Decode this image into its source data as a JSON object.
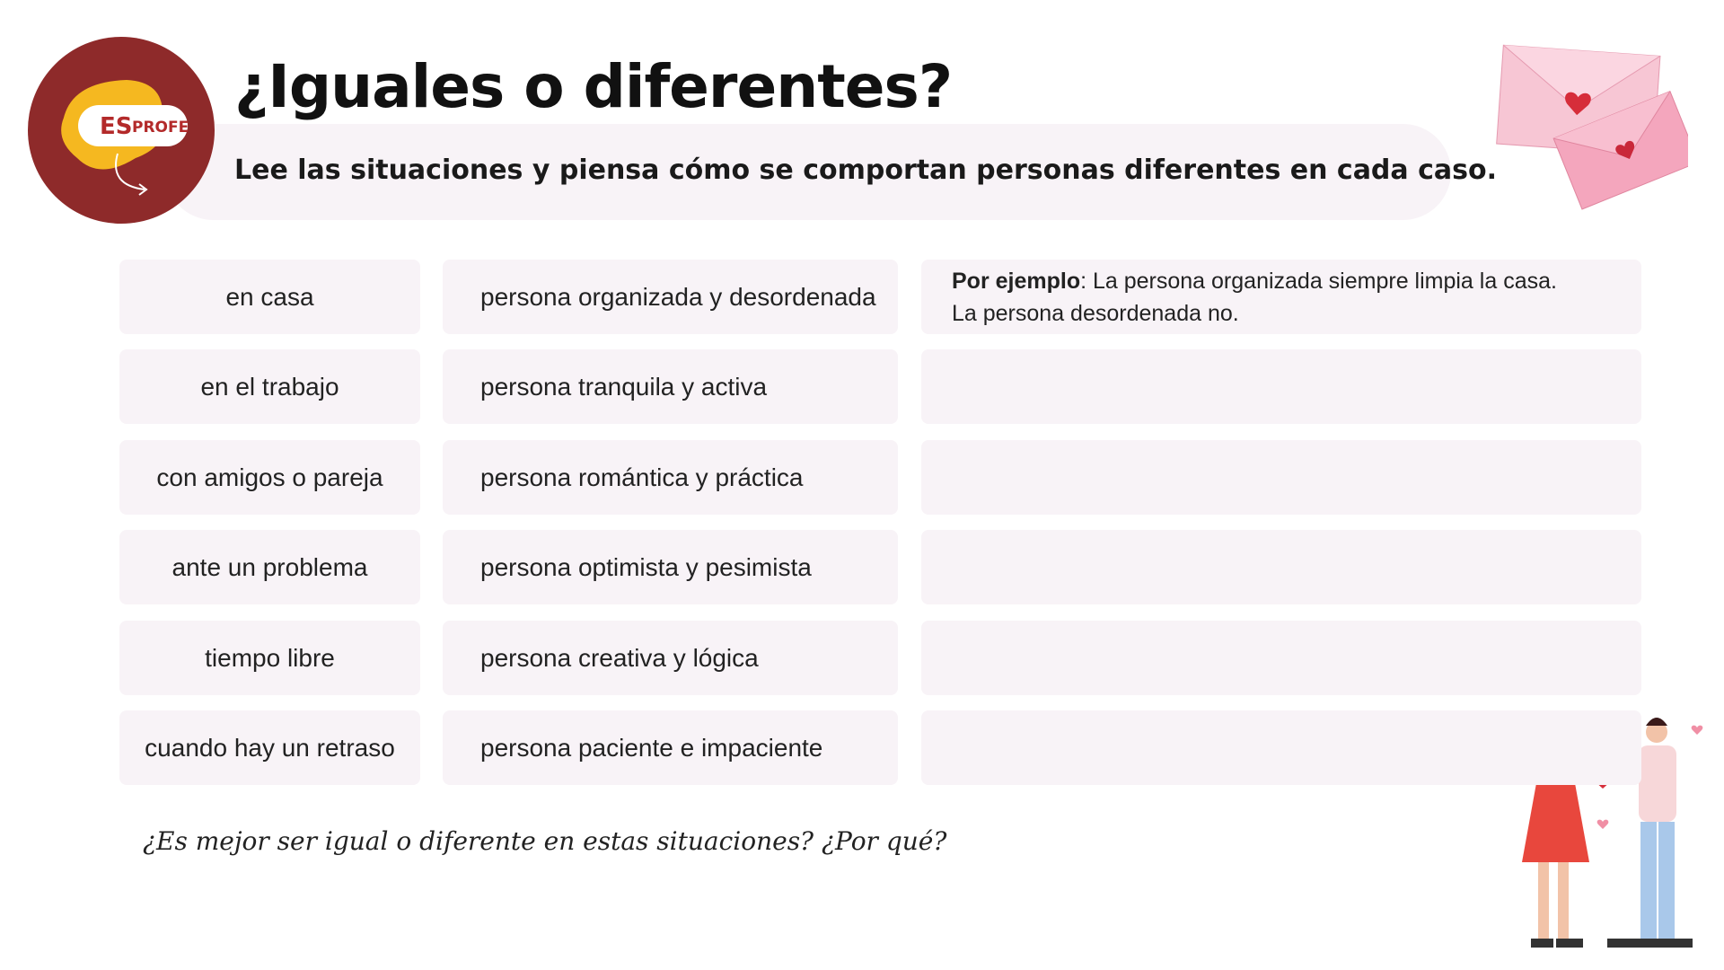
{
  "header": {
    "title": "¿Iguales o diferentes?",
    "subtitle": "Lee las situaciones y piensa cómo se comportan personas diferentes en cada caso.",
    "logo": {
      "es": "ES",
      "profe": "PROFE"
    }
  },
  "table": {
    "rows": [
      [
        "en casa",
        "persona organizada y  desordenada"
      ],
      [
        "en el trabajo",
        "persona tranquila y activa"
      ],
      [
        "con amigos o pareja",
        "persona romántica y  práctica"
      ],
      [
        "ante un problema",
        "persona optimista y pesimista"
      ],
      [
        "tiempo libre",
        "persona creativa y lógica"
      ],
      [
        "cuando hay un retraso",
        "persona paciente e impaciente"
      ]
    ],
    "example": {
      "label": "Por ejemplo",
      "text": ": La persona organizada siempre limpia la casa.",
      "line2": "La persona desordenada no."
    }
  },
  "question": "¿Es mejor ser igual o diferente en estas situaciones? ¿Por qué?"
}
